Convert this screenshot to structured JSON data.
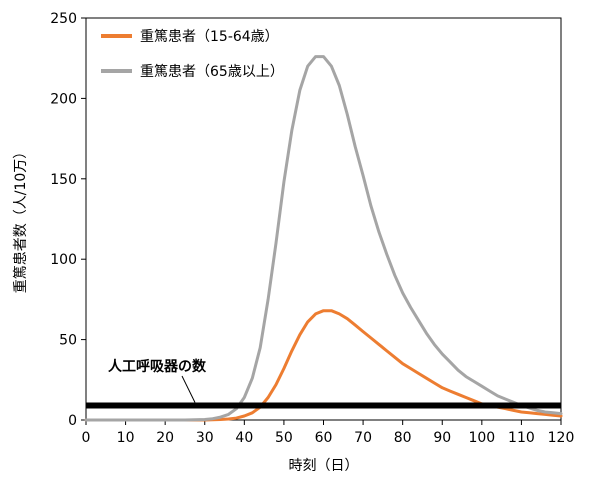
{
  "chart_data": {
    "type": "line",
    "xlabel": "時刻（日）",
    "ylabel": "重篤患者数（人/10万）",
    "xlim": [
      0,
      120
    ],
    "ylim": [
      0,
      250
    ],
    "xticks": [
      0,
      10,
      20,
      30,
      40,
      50,
      60,
      70,
      80,
      90,
      100,
      110,
      120
    ],
    "yticks": [
      0,
      50,
      100,
      150,
      200,
      250
    ],
    "grid": false,
    "legend_position": "top-left",
    "series": [
      {
        "name": "重篤患者（15-64歳）",
        "color": "#ED7D31",
        "x": [
          0,
          30,
          34,
          36,
          38,
          40,
          42,
          44,
          46,
          48,
          50,
          52,
          54,
          56,
          58,
          60,
          62,
          64,
          66,
          68,
          70,
          72,
          74,
          76,
          78,
          80,
          82,
          84,
          86,
          88,
          90,
          92,
          94,
          96,
          98,
          100,
          102,
          104,
          106,
          108,
          110,
          112,
          114,
          116,
          118,
          120
        ],
        "values": [
          0,
          0,
          0.3,
          0.6,
          1.2,
          2.5,
          4.5,
          8,
          14,
          22,
          32,
          43,
          53,
          61,
          66,
          68,
          68,
          66,
          63,
          59,
          55,
          51,
          47,
          43,
          39,
          35,
          32,
          29,
          26,
          23,
          20,
          18,
          16,
          14,
          12,
          10,
          9,
          8,
          7,
          6,
          5,
          4.5,
          4,
          3.5,
          3,
          2.5
        ]
      },
      {
        "name": "重篤患者（65歳以上）",
        "color": "#A5A5A5",
        "x": [
          0,
          25,
          30,
          32,
          34,
          36,
          38,
          40,
          42,
          44,
          46,
          48,
          50,
          52,
          54,
          56,
          58,
          60,
          62,
          64,
          66,
          68,
          70,
          72,
          74,
          76,
          78,
          80,
          82,
          84,
          86,
          88,
          90,
          92,
          94,
          96,
          98,
          100,
          102,
          104,
          106,
          108,
          110,
          112,
          114,
          116,
          118,
          120
        ],
        "values": [
          0,
          0,
          0.3,
          0.8,
          1.8,
          3.5,
          7,
          14,
          26,
          45,
          75,
          110,
          148,
          180,
          205,
          220,
          226,
          226,
          220,
          208,
          190,
          170,
          152,
          133,
          117,
          103,
          90,
          79,
          70,
          62,
          54,
          47,
          41,
          36,
          31,
          27,
          24,
          21,
          18,
          15,
          13,
          11,
          9,
          7.5,
          6,
          5,
          4.5,
          4
        ]
      }
    ],
    "reference_line": {
      "label": "人工呼吸器の数",
      "value": 9,
      "color": "#000000"
    }
  }
}
